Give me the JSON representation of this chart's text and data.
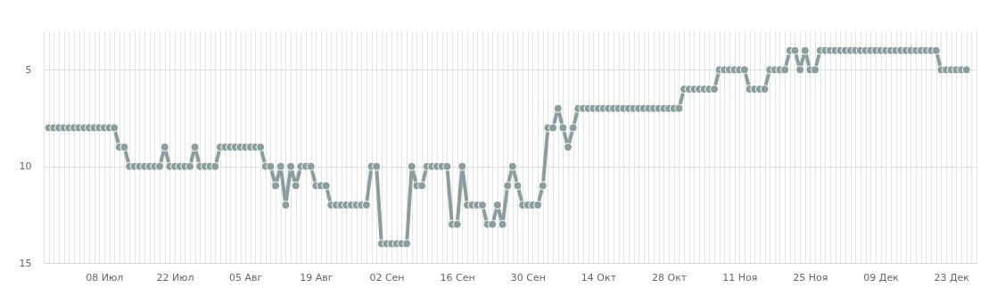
{
  "chart_data": {
    "type": "line",
    "x": [
      "--06-27",
      "--06-28",
      "--06-29",
      "--06-30",
      "--07-01",
      "--07-02",
      "--07-03",
      "--07-04",
      "--07-05",
      "--07-06",
      "--07-07",
      "--07-08",
      "--07-09",
      "--07-10",
      "--07-11",
      "--07-12",
      "--07-13",
      "--07-14",
      "--07-15",
      "--07-16",
      "--07-17",
      "--07-18",
      "--07-19",
      "--07-20",
      "--07-21",
      "--07-22",
      "--07-23",
      "--07-24",
      "--07-25",
      "--07-26",
      "--07-27",
      "--07-28",
      "--07-29",
      "--07-30",
      "--07-31",
      "--08-01",
      "--08-02",
      "--08-03",
      "--08-04",
      "--08-05",
      "--08-06",
      "--08-07",
      "--08-08",
      "--08-09",
      "--08-10",
      "--08-11",
      "--08-12",
      "--08-13",
      "--08-14",
      "--08-15",
      "--08-16",
      "--08-17",
      "--08-18",
      "--08-19",
      "--08-20",
      "--08-21",
      "--08-22",
      "--08-23",
      "--08-24",
      "--08-25",
      "--08-26",
      "--08-27",
      "--08-28",
      "--08-29",
      "--08-30",
      "--08-31",
      "--09-01",
      "--09-02",
      "--09-03",
      "--09-04",
      "--09-05",
      "--09-06",
      "--09-07",
      "--09-08",
      "--09-09",
      "--09-10",
      "--09-11",
      "--09-12",
      "--09-13",
      "--09-14",
      "--09-15",
      "--09-16",
      "--09-17",
      "--09-18",
      "--09-19",
      "--09-20",
      "--09-21",
      "--09-22",
      "--09-23",
      "--09-24",
      "--09-25",
      "--09-26",
      "--09-27",
      "--09-28",
      "--09-29",
      "--09-30",
      "--10-01",
      "--10-02",
      "--10-03",
      "--10-04",
      "--10-05",
      "--10-06",
      "--10-07",
      "--10-08",
      "--10-09",
      "--10-10",
      "--10-11",
      "--10-12",
      "--10-13",
      "--10-14",
      "--10-15",
      "--10-16",
      "--10-17",
      "--10-18",
      "--10-19",
      "--10-20",
      "--10-21",
      "--10-22",
      "--10-23",
      "--10-24",
      "--10-25",
      "--10-26",
      "--10-27",
      "--10-28",
      "--10-29",
      "--10-30",
      "--10-31",
      "--11-01",
      "--11-02",
      "--11-03",
      "--11-04",
      "--11-05",
      "--11-06",
      "--11-07",
      "--11-08",
      "--11-09",
      "--11-10",
      "--11-11",
      "--11-12",
      "--11-13",
      "--11-14",
      "--11-15",
      "--11-16",
      "--11-17",
      "--11-18",
      "--11-19",
      "--11-20",
      "--11-21",
      "--11-22",
      "--11-23",
      "--11-24",
      "--11-25",
      "--11-26",
      "--11-27",
      "--11-28",
      "--11-29",
      "--11-30",
      "--12-01",
      "--12-02",
      "--12-03",
      "--12-04",
      "--12-05",
      "--12-06",
      "--12-07",
      "--12-08",
      "--12-09",
      "--12-10",
      "--12-11",
      "--12-12",
      "--12-13",
      "--12-14",
      "--12-15",
      "--12-16",
      "--12-17",
      "--12-18",
      "--12-19",
      "--12-20",
      "--12-21",
      "--12-22",
      "--12-23",
      "--12-24",
      "--12-25",
      "--12-26"
    ],
    "series": [
      {
        "color": "#899e9d",
        "values": [
          8,
          8,
          8,
          8,
          8,
          8,
          8,
          8,
          8,
          8,
          8,
          8,
          8,
          8,
          9,
          9,
          10,
          10,
          10,
          10,
          10,
          10,
          10,
          9,
          10,
          10,
          10,
          10,
          10,
          9,
          10,
          10,
          10,
          10,
          9,
          9,
          9,
          9,
          9,
          9,
          9,
          9,
          9,
          10,
          10,
          11,
          10,
          12,
          10,
          11,
          10,
          10,
          10,
          11,
          11,
          11,
          12,
          12,
          12,
          12,
          12,
          12,
          12,
          12,
          10,
          10,
          14,
          14,
          14,
          14,
          14,
          14,
          10,
          11,
          11,
          10,
          10,
          10,
          10,
          10,
          13,
          13,
          10,
          12,
          12,
          12,
          12,
          13,
          13,
          12,
          13,
          11,
          10,
          11,
          12,
          12,
          12,
          12,
          11,
          8,
          8,
          7,
          8,
          9,
          8,
          7,
          7,
          7,
          7,
          7,
          7,
          7,
          7,
          7,
          7,
          7,
          7,
          7,
          7,
          7,
          7,
          7,
          7,
          7,
          7,
          7,
          6,
          6,
          6,
          6,
          6,
          6,
          6,
          5,
          5,
          5,
          5,
          5,
          5,
          6,
          6,
          6,
          6,
          5,
          5,
          5,
          5,
          4,
          4,
          5,
          4,
          5,
          5,
          4,
          4,
          4,
          4,
          4,
          4,
          4,
          4,
          4,
          4,
          4,
          4,
          4,
          4,
          4,
          4,
          4,
          4,
          4,
          4,
          4,
          4,
          4,
          4,
          5,
          5,
          5,
          5,
          5,
          5
        ]
      }
    ],
    "xlim": [
      "--06-26",
      "--12-28"
    ],
    "xticks": [
      {
        "value": "--07-08",
        "label": "08 Июл"
      },
      {
        "value": "--07-22",
        "label": "22 Июл"
      },
      {
        "value": "--08-05",
        "label": "05 Авг"
      },
      {
        "value": "--08-19",
        "label": "19 Авг"
      },
      {
        "value": "--09-02",
        "label": "02 Сен"
      },
      {
        "value": "--09-16",
        "label": "16 Сен"
      },
      {
        "value": "--09-30",
        "label": "30 Сен"
      },
      {
        "value": "--10-14",
        "label": "14 Окт"
      },
      {
        "value": "--10-28",
        "label": "28 Окт"
      },
      {
        "value": "--11-11",
        "label": "11 Ноя"
      },
      {
        "value": "--11-25",
        "label": "25 Ноя"
      },
      {
        "value": "--12-09",
        "label": "09 Дек"
      },
      {
        "value": "--12-23",
        "label": "23 Дек"
      }
    ],
    "ylim": [
      15,
      3
    ],
    "yticks": [
      5,
      10,
      15
    ],
    "grid": true,
    "marker": "circle",
    "line_style": "solid"
  }
}
